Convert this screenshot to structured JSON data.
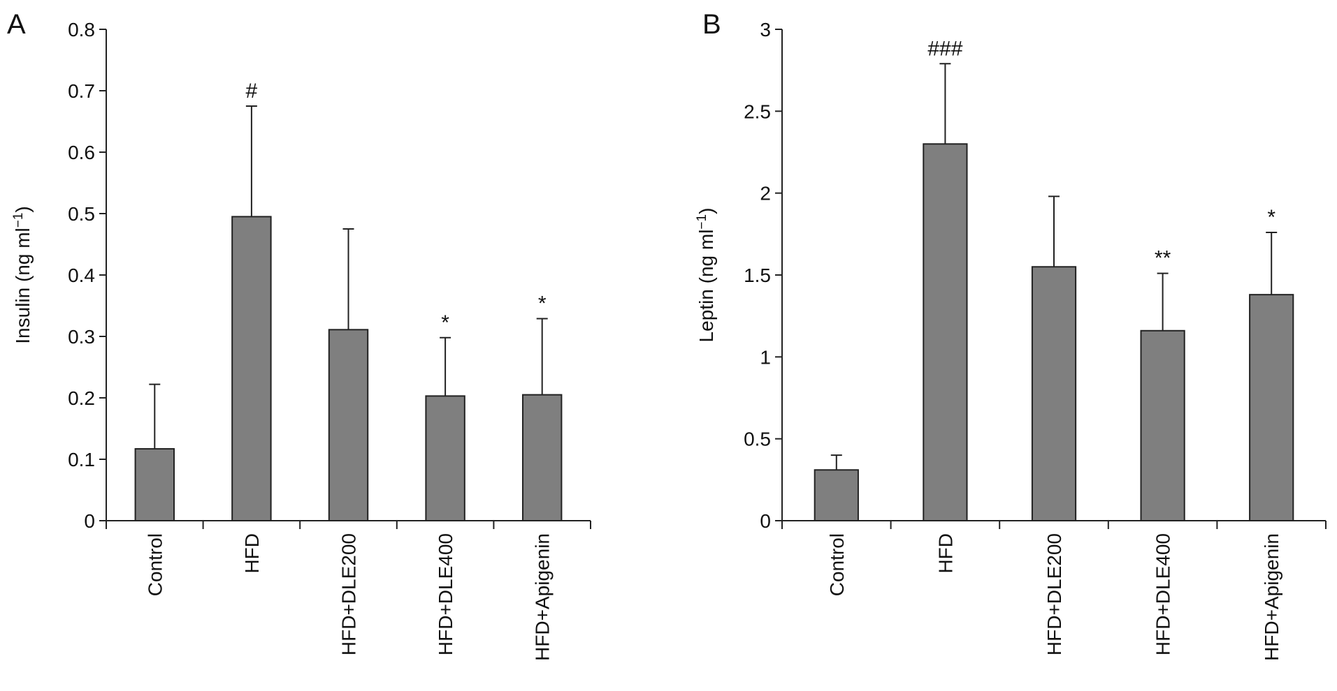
{
  "chart_data": [
    {
      "type": "bar",
      "panel_label": "A",
      "categories": [
        "Control",
        "HFD",
        "HFD+DLE200",
        "HFD+DLE400",
        "HFD+Apigenin"
      ],
      "values": [
        0.117,
        0.495,
        0.311,
        0.203,
        0.205
      ],
      "errors": [
        0.105,
        0.18,
        0.164,
        0.095,
        0.124
      ],
      "annotations": [
        "",
        "#",
        "",
        "*",
        "*"
      ],
      "ylabel": "Insulin (ng ml",
      "ylabel_sup": "−1",
      "ylabel_close": ")",
      "ylim": [
        0,
        0.8
      ],
      "yticks": [
        0,
        0.1,
        0.2,
        0.3,
        0.4,
        0.5,
        0.6,
        0.7,
        0.8
      ],
      "ytick_labels": [
        "0",
        "0.1",
        "0.2",
        "0.3",
        "0.4",
        "0.5",
        "0.6",
        "0.7",
        "0.8"
      ],
      "bar_color": "#7f7f7f",
      "grid": false,
      "legend": "none"
    },
    {
      "type": "bar",
      "panel_label": "B",
      "categories": [
        "Control",
        "HFD",
        "HFD+DLE200",
        "HFD+DLE400",
        "HFD+Apigenin"
      ],
      "values": [
        0.31,
        2.3,
        1.55,
        1.16,
        1.38
      ],
      "errors": [
        0.09,
        0.49,
        0.43,
        0.35,
        0.38
      ],
      "annotations": [
        "",
        "###",
        "",
        "**",
        "*"
      ],
      "ylabel": "Leptin (ng ml",
      "ylabel_sup": "−1",
      "ylabel_close": ")",
      "ylim": [
        0,
        3
      ],
      "yticks": [
        0,
        0.5,
        1,
        1.5,
        2,
        2.5,
        3
      ],
      "ytick_labels": [
        "0",
        "0.5",
        "1",
        "1.5",
        "2",
        "2.5",
        "3"
      ],
      "bar_color": "#7f7f7f",
      "grid": false,
      "legend": "none"
    }
  ]
}
